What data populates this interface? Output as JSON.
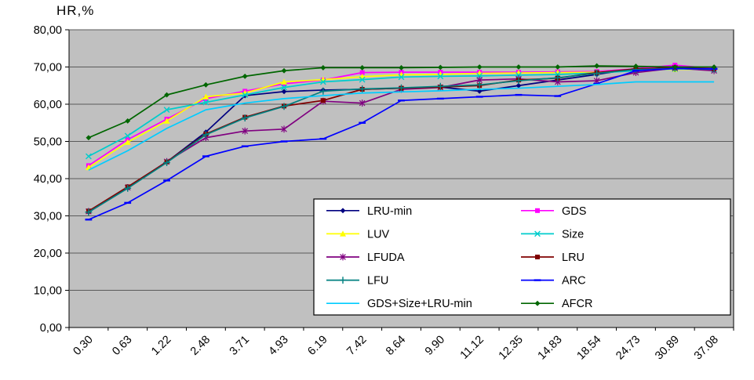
{
  "chart_data": {
    "type": "line",
    "title": "HR,%",
    "ylabel": "HR,%",
    "xlabel": "",
    "ylim": [
      0,
      80
    ],
    "y_tick_step": 10,
    "y_tick_labels": [
      "0,00",
      "10,00",
      "20,00",
      "30,00",
      "40,00",
      "50,00",
      "60,00",
      "70,00",
      "80,00"
    ],
    "categories": [
      "0.30",
      "0.63",
      "1.22",
      "2.48",
      "3.71",
      "4.93",
      "6.19",
      "7.42",
      "8.64",
      "9.90",
      "11.12",
      "12.35",
      "14.83",
      "18.54",
      "24.73",
      "30.89",
      "37.08"
    ],
    "grid": true,
    "plot_bg": "#c0c0c0",
    "gridline_color": "#5a5a5a",
    "axis_color": "#000000",
    "legend": {
      "position": "inside-bottom",
      "columns": 2,
      "border": "#000000",
      "bg": "#ffffff"
    },
    "series": [
      {
        "name": "LRU-min",
        "color": "#000080",
        "marker": "diamond",
        "values": [
          31.0,
          37.5,
          44.5,
          52.5,
          62.3,
          63.4,
          63.8,
          64.0,
          64.3,
          64.6,
          63.5,
          65.0,
          66.5,
          68.0,
          69.6,
          70.0,
          69.6
        ]
      },
      {
        "name": "GDS",
        "color": "#ff00ff",
        "marker": "square",
        "values": [
          43.5,
          50.5,
          56.0,
          61.5,
          63.5,
          65.5,
          66.5,
          68.5,
          68.6,
          68.6,
          68.6,
          68.6,
          68.7,
          68.8,
          69.5,
          70.5,
          69.6
        ]
      },
      {
        "name": "LUV",
        "color": "#ffff00",
        "marker": "triangle",
        "values": [
          43.0,
          49.8,
          55.5,
          62.0,
          63.0,
          66.0,
          66.6,
          67.4,
          67.9,
          68.0,
          68.3,
          68.4,
          68.5,
          68.6,
          69.2,
          69.4,
          69.3
        ]
      },
      {
        "name": "Size",
        "color": "#00cccc",
        "marker": "x",
        "values": [
          46.0,
          51.5,
          58.5,
          60.5,
          62.5,
          64.5,
          66.0,
          66.6,
          67.3,
          67.5,
          67.6,
          67.8,
          68.0,
          68.4,
          69.0,
          69.5,
          69.3
        ]
      },
      {
        "name": "LFUDA",
        "color": "#800080",
        "marker": "asterisk",
        "values": [
          31.2,
          37.6,
          44.6,
          51.0,
          52.8,
          53.3,
          60.8,
          60.3,
          64.0,
          64.5,
          66.5,
          66.8,
          66.0,
          66.3,
          68.5,
          69.7,
          69.0
        ]
      },
      {
        "name": "LRU",
        "color": "#800000",
        "marker": "square",
        "values": [
          31.3,
          37.8,
          44.5,
          52.0,
          56.5,
          59.5,
          61.0,
          64.0,
          64.3,
          64.6,
          65.0,
          66.5,
          67.0,
          68.5,
          69.5,
          69.8,
          69.5
        ]
      },
      {
        "name": "LFU",
        "color": "#008080",
        "marker": "plus",
        "values": [
          31.0,
          37.4,
          44.3,
          51.8,
          56.3,
          59.4,
          63.5,
          64.1,
          64.4,
          64.8,
          65.2,
          66.3,
          67.1,
          68.3,
          69.3,
          69.6,
          69.4
        ]
      },
      {
        "name": "ARC",
        "color": "#0000ff",
        "marker": "dash",
        "values": [
          29.0,
          33.5,
          39.5,
          46.0,
          48.7,
          50.0,
          50.7,
          55.0,
          61.0,
          61.5,
          62.0,
          62.5,
          62.2,
          65.5,
          69.0,
          69.6,
          69.5
        ]
      },
      {
        "name": "GDS+Size+LRU-min",
        "color": "#00ccff",
        "marker": "none",
        "values": [
          42.3,
          47.5,
          53.5,
          58.5,
          60.3,
          61.5,
          62.3,
          63.0,
          63.3,
          63.6,
          64.0,
          64.3,
          64.8,
          65.3,
          66.0,
          66.0,
          66.0
        ]
      },
      {
        "name": "AFCR",
        "color": "#006600",
        "marker": "diamond",
        "values": [
          51.0,
          55.5,
          62.5,
          65.2,
          67.5,
          69.0,
          69.8,
          69.8,
          69.8,
          69.9,
          70.0,
          70.0,
          70.0,
          70.3,
          70.2,
          70.0,
          70.0
        ]
      }
    ]
  }
}
